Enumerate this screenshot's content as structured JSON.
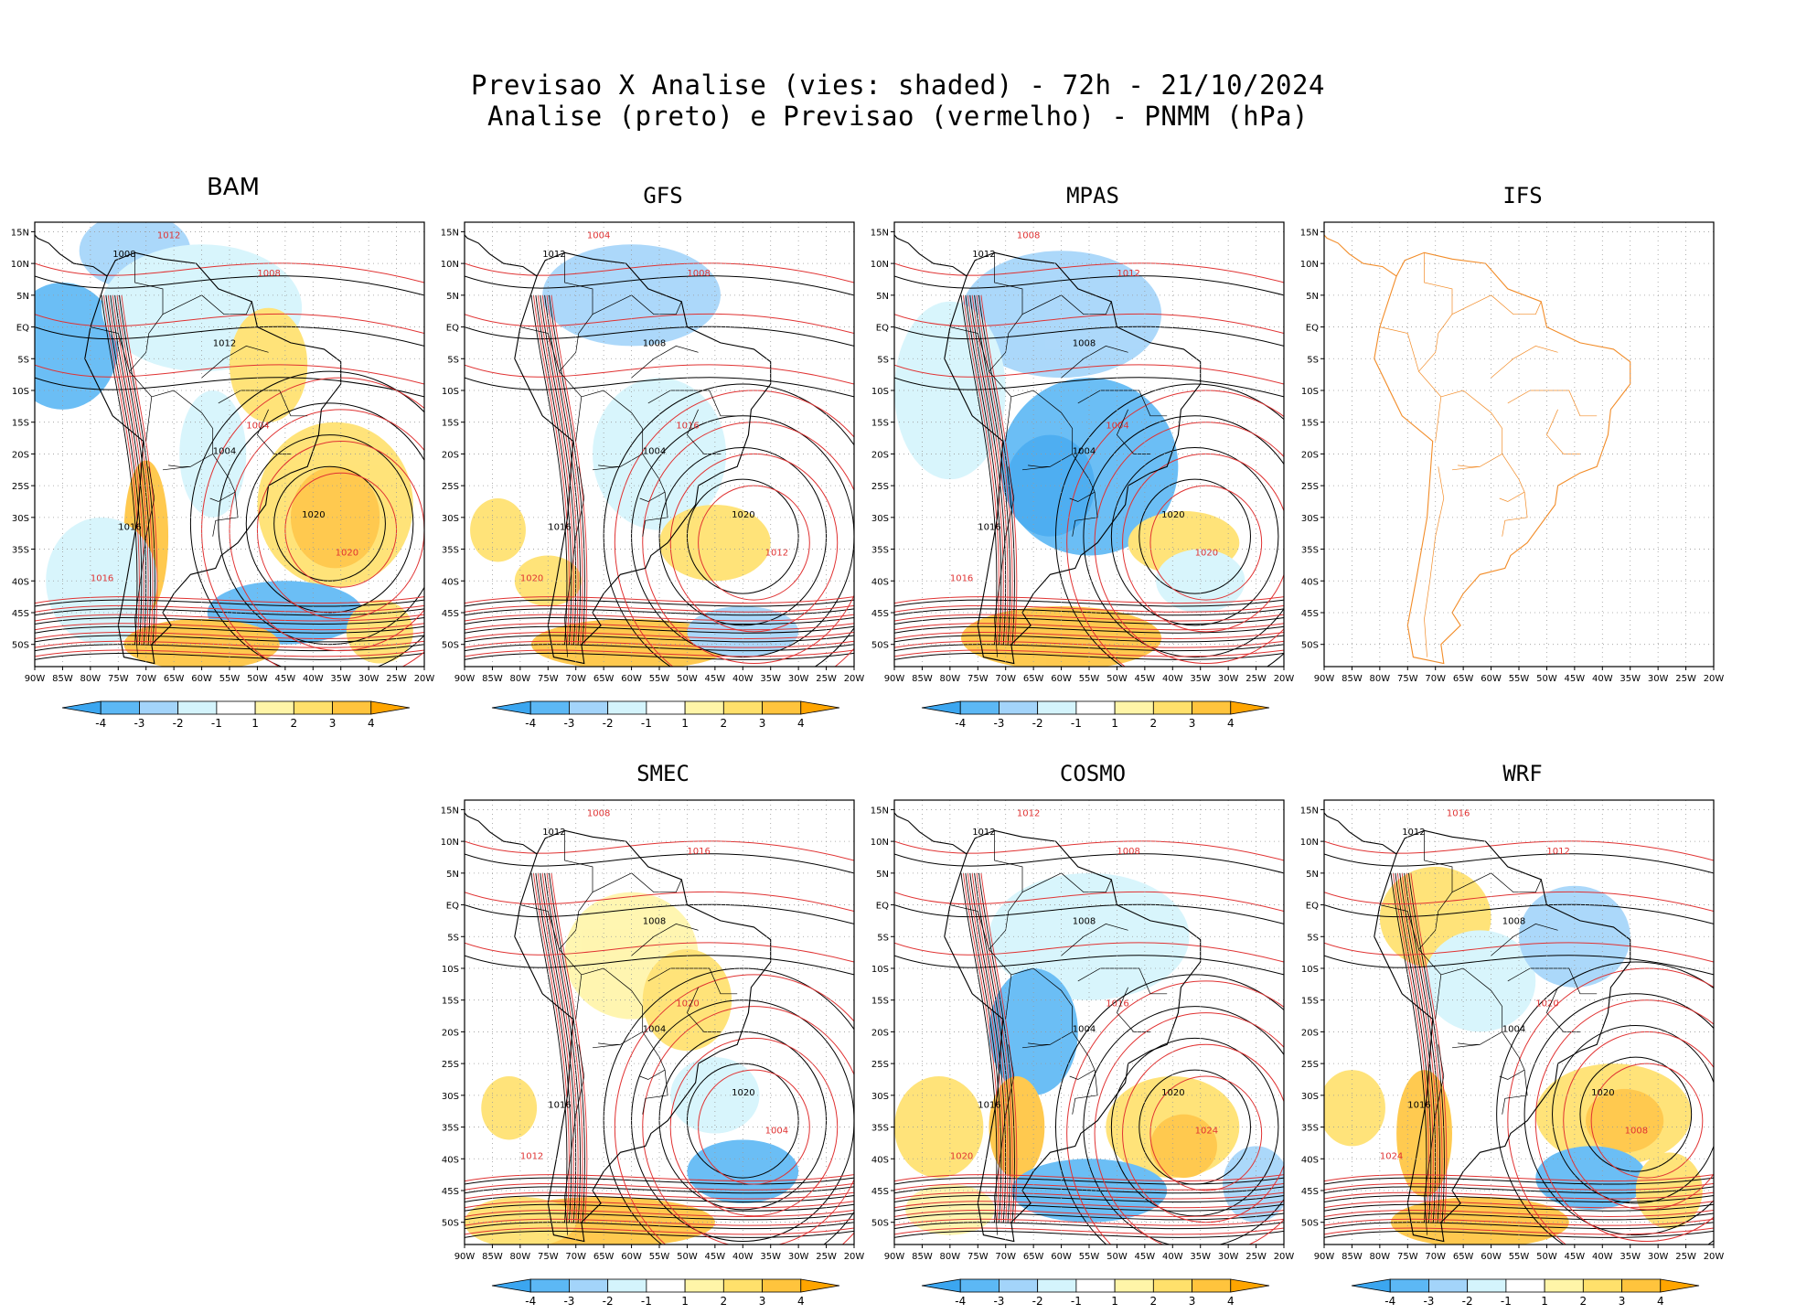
{
  "title": {
    "line1": "Previsao X Analise (vies: shaded) - 72h - 21/10/2024",
    "line2": "Analise (preto) e Previsao (vermelho) - PNMM (hPa)"
  },
  "latitude_labels": [
    "15N",
    "10N",
    "5N",
    "EQ",
    "5S",
    "10S",
    "15S",
    "20S",
    "25S",
    "30S",
    "35S",
    "40S",
    "45S",
    "50S"
  ],
  "longitude_labels": [
    "90W",
    "85W",
    "80W",
    "75W",
    "70W",
    "65W",
    "60W",
    "55W",
    "50W",
    "45W",
    "40W",
    "35W",
    "30W",
    "25W",
    "20W"
  ],
  "colorbar": {
    "labels": [
      "-4",
      "-3",
      "-2",
      "-1",
      "1",
      "2",
      "3",
      "4"
    ],
    "colors": [
      "#3ba6f0",
      "#5cb8f5",
      "#a3d4fa",
      "#d4f4fc",
      "#ffffff",
      "#fff5a8",
      "#ffe06b",
      "#ffc43d",
      "#ffa500"
    ]
  },
  "colors": {
    "analysis_contour": "#000000",
    "forecast_contour": "#e03232",
    "ifs_outline": "#f28c28"
  },
  "panels": [
    {
      "name": "BAM",
      "has_data": true,
      "has_colorbar": true,
      "labels_black": [
        "1008",
        "1012",
        "1004",
        "1016",
        "1020"
      ],
      "labels_red": [
        "1012",
        "1008",
        "1004",
        "1016",
        "1020"
      ]
    },
    {
      "name": "GFS",
      "has_data": true,
      "has_colorbar": true,
      "labels_black": [
        "1012",
        "1008",
        "1004",
        "1016",
        "1020"
      ],
      "labels_red": [
        "1004",
        "1008",
        "1016",
        "1020",
        "1012"
      ]
    },
    {
      "name": "MPAS",
      "has_data": true,
      "has_colorbar": true,
      "labels_black": [
        "1012",
        "1008",
        "1004",
        "1016",
        "1020"
      ],
      "labels_red": [
        "1008",
        "1012",
        "1004",
        "1016",
        "1020"
      ]
    },
    {
      "name": "IFS",
      "has_data": false,
      "has_colorbar": false,
      "labels_black": [],
      "labels_red": []
    },
    {
      "name": "SMEC",
      "has_data": true,
      "has_colorbar": true,
      "labels_black": [
        "1012",
        "1008",
        "1004",
        "1016",
        "1020"
      ],
      "labels_red": [
        "1008",
        "1016",
        "1020",
        "1012",
        "1004"
      ]
    },
    {
      "name": "COSMO",
      "has_data": true,
      "has_colorbar": true,
      "labels_black": [
        "1012",
        "1008",
        "1004",
        "1016",
        "1020"
      ],
      "labels_red": [
        "1012",
        "1008",
        "1016",
        "1020",
        "1024"
      ]
    },
    {
      "name": "WRF",
      "has_data": true,
      "has_colorbar": true,
      "labels_black": [
        "1012",
        "1008",
        "1004",
        "1016",
        "1020"
      ],
      "labels_red": [
        "1016",
        "1012",
        "1020",
        "1024",
        "1008"
      ]
    }
  ]
}
